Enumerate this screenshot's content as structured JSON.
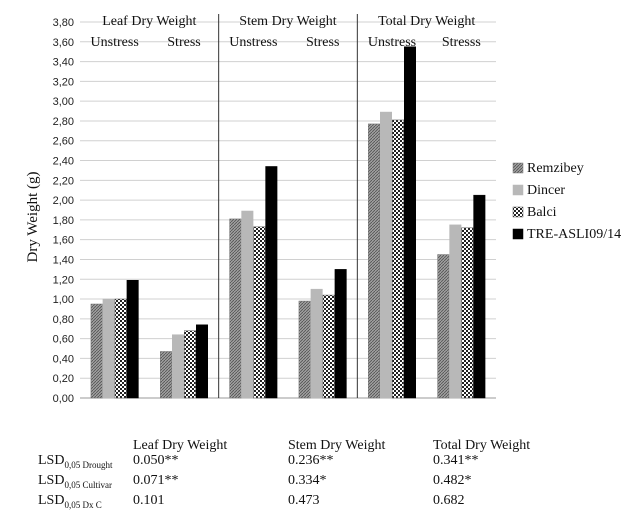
{
  "chart_data": {
    "type": "bar",
    "ylabel": "Dry Weight  (g)",
    "ylim": [
      0,
      3.8
    ],
    "ytick_step": 0.2,
    "yticks": [
      "0,00",
      "0,20",
      "0,40",
      "0,60",
      "0,80",
      "1,00",
      "1,20",
      "1,40",
      "1,60",
      "1,80",
      "2,00",
      "2,20",
      "2,40",
      "2,60",
      "2,80",
      "3,00",
      "3,20",
      "3,40",
      "3,60",
      "3,80"
    ],
    "grid": true,
    "legend_position": "right",
    "groups": [
      {
        "title": "Leaf Dry Weight",
        "conditions": [
          "Unstress",
          "Stress"
        ]
      },
      {
        "title": "Stem Dry Weight",
        "conditions": [
          "Unstress",
          "Stress"
        ]
      },
      {
        "title": "Total Dry Weight",
        "conditions": [
          "Unstress",
          "Stresss"
        ]
      }
    ],
    "series": [
      {
        "name": "Remzibey",
        "values": [
          0.95,
          0.47,
          1.81,
          0.98,
          2.77,
          1.45
        ]
      },
      {
        "name": "Dincer",
        "values": [
          1.0,
          0.64,
          1.89,
          1.1,
          2.89,
          1.75
        ]
      },
      {
        "name": "Balci",
        "values": [
          1.0,
          0.68,
          1.73,
          1.04,
          2.81,
          1.72
        ]
      },
      {
        "name": "TRE-ASLI09/14",
        "values": [
          1.19,
          0.74,
          2.34,
          1.3,
          3.55,
          2.05
        ]
      }
    ]
  },
  "colors": {
    "remzibey": "#8a8a8a",
    "dincer": "#b8b8b8",
    "balci": "#ffffff",
    "tre": "#000000",
    "grid": "#d0d0d0"
  },
  "lsd_table": {
    "headers": [
      "Leaf  Dry Weight",
      "Stem Dry Weight",
      "Total Dry Weight"
    ],
    "rows": [
      {
        "label_main": "LSD",
        "label_sub": "0,05 Drought",
        "values": [
          "0.050**",
          "0.236**",
          "0.341**"
        ]
      },
      {
        "label_main": "LSD",
        "label_sub": "0,05 Cultivar",
        "values": [
          "0.071**",
          "0.334*",
          "0.482*"
        ]
      },
      {
        "label_main": "LSD",
        "label_sub": "0,05 Dx C",
        "values": [
          "0.101",
          "0.473",
          "0.682"
        ]
      }
    ]
  }
}
